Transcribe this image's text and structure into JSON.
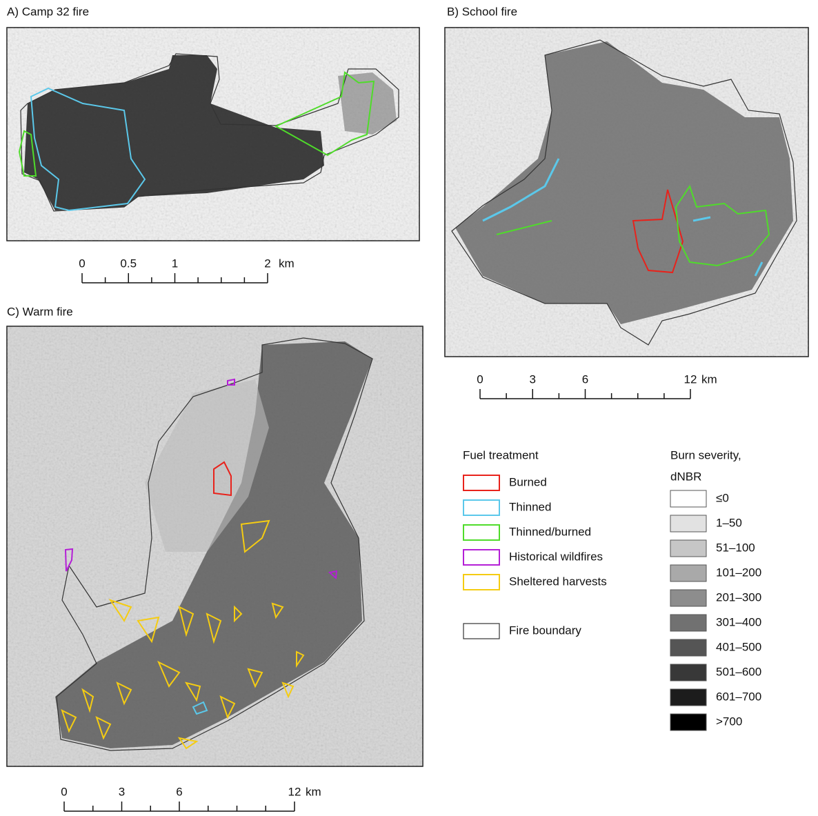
{
  "panels": [
    {
      "title": "A) Camp 32 fire",
      "scale": {
        "ticks": [
          0,
          0.25,
          0.5,
          0.75,
          1,
          1.25,
          1.5,
          1.75,
          2
        ],
        "labels": [
          0,
          0.5,
          1,
          2
        ],
        "unit": "km"
      }
    },
    {
      "title": "B) School fire",
      "scale": {
        "ticks": [
          0,
          1.5,
          3,
          4.5,
          6,
          7.5,
          9,
          10.5,
          12
        ],
        "labels": [
          0,
          3,
          6,
          12
        ],
        "unit": "km"
      }
    },
    {
      "title": "C) Warm fire",
      "scale": {
        "ticks": [
          0,
          1.5,
          3,
          4.5,
          6,
          7.5,
          9,
          10.5,
          12
        ],
        "labels": [
          0,
          3,
          6,
          12
        ],
        "unit": "km"
      }
    }
  ],
  "fuel_legend": {
    "title": "Fuel treatment",
    "items": [
      {
        "label": "Burned",
        "color": "#e8221b"
      },
      {
        "label": "Thinned",
        "color": "#5bc8ea"
      },
      {
        "label": "Thinned/burned",
        "color": "#4fdc2a"
      },
      {
        "label": "Historical wildfires",
        "color": "#b41fd6"
      },
      {
        "label": "Sheltered harvests",
        "color": "#f5cc12"
      }
    ]
  },
  "boundary": {
    "label": "Fire boundary",
    "color": "#333333"
  },
  "severity_legend": {
    "title": [
      "Burn severity,",
      "dNBR"
    ],
    "classes": [
      {
        "label": "≤0",
        "color": "#ffffff"
      },
      {
        "label": "1–50",
        "color": "#e2e2e2"
      },
      {
        "label": "51–100",
        "color": "#c6c6c6"
      },
      {
        "label": "101–200",
        "color": "#a9a9a9"
      },
      {
        "label": "201–300",
        "color": "#8d8d8d"
      },
      {
        "label": "301–400",
        "color": "#717171"
      },
      {
        "label": "401–500",
        "color": "#555555"
      },
      {
        "label": "501–600",
        "color": "#383838"
      },
      {
        "label": "601–700",
        "color": "#1c1c1c"
      },
      {
        "label": ">700",
        "color": "#000000"
      }
    ]
  }
}
